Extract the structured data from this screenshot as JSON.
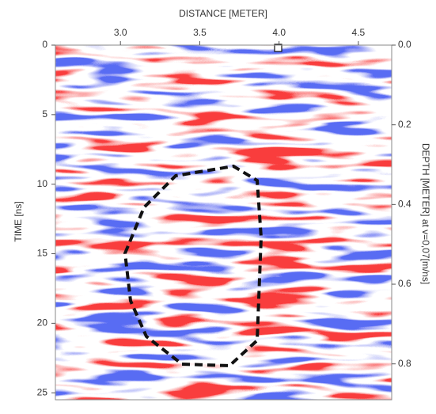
{
  "chart_data": {
    "type": "image",
    "x_label": "DISTANCE [METER]",
    "y_label": "TIME [ns]",
    "y2_label": "DEPTH [METER] at v=0,07[m/ns]",
    "xlim": [
      2.59,
      4.71
    ],
    "xticks": [
      {
        "value": 3,
        "label": "3.0"
      },
      3.5,
      {
        "value": 4,
        "label": "4.0"
      },
      4.5
    ],
    "ylim": [
      0,
      25.5
    ],
    "yticks": [
      0,
      5,
      10,
      15,
      20,
      25
    ],
    "y2lim": [
      0,
      0.89
    ],
    "y2ticks": [
      {
        "value": 0,
        "label": "0.0"
      },
      0.2,
      0.4,
      0.6,
      0.8
    ]
  }
}
